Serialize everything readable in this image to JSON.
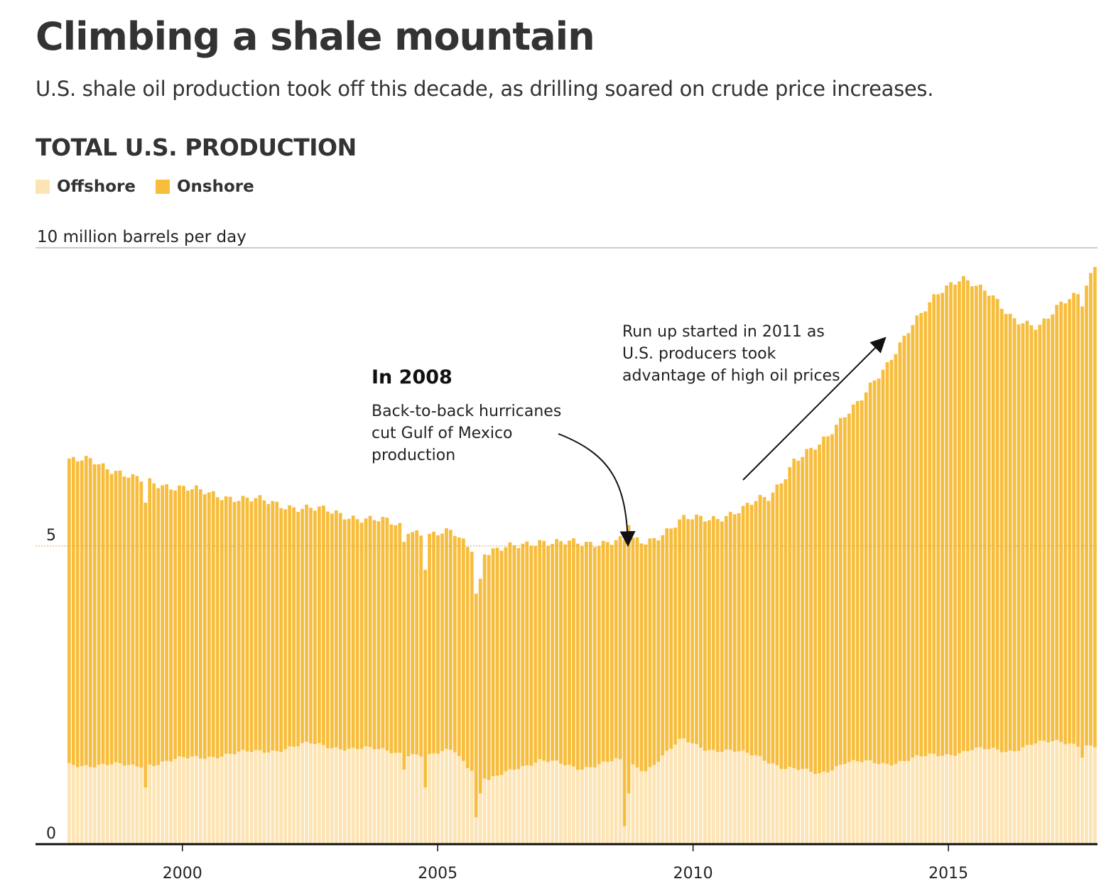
{
  "header": {
    "title": "Climbing a shale mountain",
    "subtitle": "U.S. shale oil production took off this decade, as drilling soared on crude price increases.",
    "section_title": "TOTAL U.S. PRODUCTION"
  },
  "legend": {
    "offshore_label": "Offshore",
    "onshore_label": "Onshore"
  },
  "colors": {
    "offshore": "#fde4b4",
    "onshore": "#f7bd3d",
    "text": "#333333",
    "axis": "#111111",
    "grid": "#bbbbbb"
  },
  "annotations": {
    "hurricane": {
      "heading": "In 2008",
      "lines": [
        "Back-to-back hurricanes",
        "cut Gulf of Mexico",
        "production"
      ]
    },
    "runup": {
      "lines": [
        "Run up started in 2011 as",
        "U.S. producers took",
        "advantage of high oil prices"
      ]
    }
  },
  "chart_data": {
    "type": "bar",
    "stacked": true,
    "title": "TOTAL U.S. PRODUCTION",
    "ylabel": "10 million barrels per day",
    "ylim": [
      0,
      10
    ],
    "yticks": [
      {
        "value": 0,
        "label": "0"
      },
      {
        "value": 5,
        "label": "5"
      }
    ],
    "xlim": [
      1997.75,
      2017.92
    ],
    "xticks": [
      {
        "value": 2000,
        "label": "2000"
      },
      {
        "value": 2005,
        "label": "2005"
      },
      {
        "value": 2010,
        "label": "2010"
      },
      {
        "value": 2015,
        "label": "2015"
      }
    ],
    "x_start": 1997.75,
    "x_step_months": 1,
    "series": [
      {
        "name": "Offshore",
        "knots": [
          [
            1997.75,
            1.32
          ],
          [
            1998.5,
            1.34
          ],
          [
            1999.0,
            1.3
          ],
          [
            1999.9,
            1.42
          ],
          [
            2000.8,
            1.5
          ],
          [
            2001.8,
            1.58
          ],
          [
            2002.5,
            1.68
          ],
          [
            2003.3,
            1.6
          ],
          [
            2004.0,
            1.58
          ],
          [
            2004.8,
            1.45
          ],
          [
            2005.3,
            1.62
          ],
          [
            2005.6,
            1.3
          ],
          [
            2006.0,
            1.05
          ],
          [
            2006.5,
            1.28
          ],
          [
            2007.0,
            1.4
          ],
          [
            2007.8,
            1.28
          ],
          [
            2008.5,
            1.4
          ],
          [
            2009.1,
            1.25
          ],
          [
            2009.8,
            1.75
          ],
          [
            2010.3,
            1.6
          ],
          [
            2010.8,
            1.55
          ],
          [
            2011.3,
            1.48
          ],
          [
            2011.8,
            1.28
          ],
          [
            2012.5,
            1.18
          ],
          [
            2013.0,
            1.38
          ],
          [
            2013.8,
            1.35
          ],
          [
            2014.4,
            1.45
          ],
          [
            2015.0,
            1.5
          ],
          [
            2015.5,
            1.6
          ],
          [
            2016.2,
            1.55
          ],
          [
            2016.7,
            1.7
          ],
          [
            2017.3,
            1.7
          ],
          [
            2017.92,
            1.65
          ]
        ],
        "overrides": {
          "18": 0.95,
          "79": 1.25,
          "84": 0.95,
          "96": 0.45,
          "97": 0.85,
          "131": 0.3,
          "132": 0.85,
          "239": 1.45
        }
      },
      {
        "name": "Onshore",
        "knots": [
          [
            1997.75,
            5.08
          ],
          [
            1998.2,
            5.13
          ],
          [
            1998.6,
            4.95
          ],
          [
            1999.0,
            4.82
          ],
          [
            1999.8,
            4.6
          ],
          [
            2000.5,
            4.4
          ],
          [
            2001.5,
            4.2
          ],
          [
            2002.5,
            3.95
          ],
          [
            2003.3,
            3.9
          ],
          [
            2004.0,
            3.82
          ],
          [
            2004.7,
            3.75
          ],
          [
            2005.3,
            3.6
          ],
          [
            2006.0,
            3.85
          ],
          [
            2006.5,
            3.7
          ],
          [
            2007.3,
            3.7
          ],
          [
            2007.8,
            3.75
          ],
          [
            2008.5,
            3.7
          ],
          [
            2009.1,
            3.8
          ],
          [
            2009.8,
            3.7
          ],
          [
            2010.5,
            3.9
          ],
          [
            2011.0,
            4.1
          ],
          [
            2011.5,
            4.4
          ],
          [
            2012.0,
            5.2
          ],
          [
            2012.7,
            5.6
          ],
          [
            2013.3,
            6.1
          ],
          [
            2013.8,
            6.6
          ],
          [
            2014.3,
            7.3
          ],
          [
            2014.8,
            7.7
          ],
          [
            2015.3,
            7.95
          ],
          [
            2015.8,
            7.7
          ],
          [
            2016.3,
            7.2
          ],
          [
            2016.8,
            7.0
          ],
          [
            2017.2,
            7.3
          ],
          [
            2017.7,
            7.6
          ],
          [
            2017.92,
            8.1
          ]
        ],
        "overrides": {
          "96": 3.75,
          "97": 3.6,
          "131": 4.8,
          "132": 4.5
        }
      }
    ]
  }
}
